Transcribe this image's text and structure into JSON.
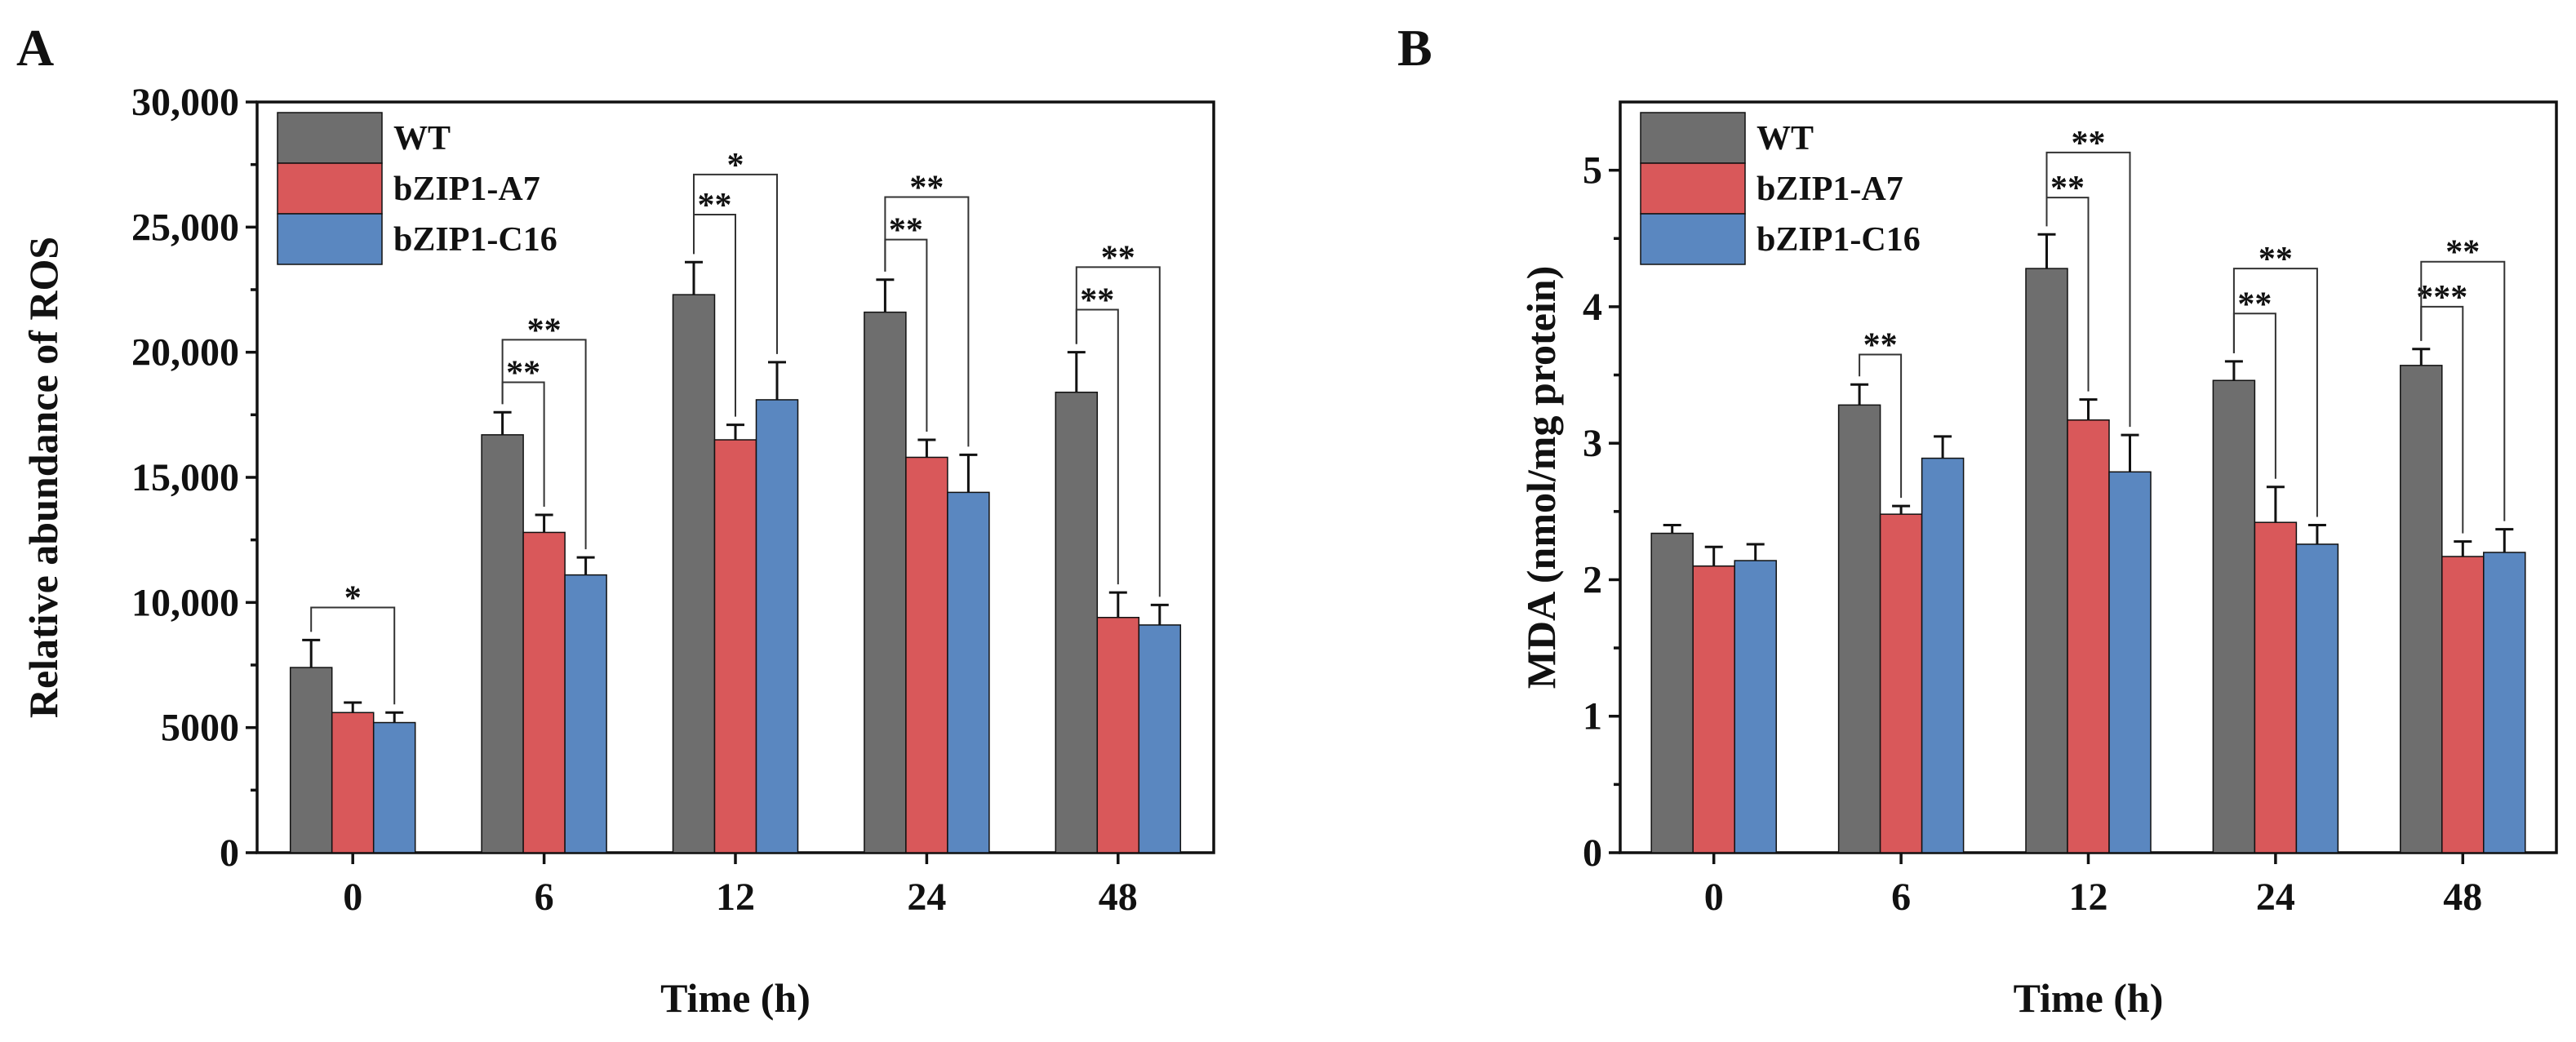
{
  "colors": {
    "WT": "#6e6e6e",
    "bZIP1-A7": "#d9585a",
    "bZIP1-C16": "#5a87c0"
  },
  "chart_data": [
    {
      "panel": "A",
      "type": "bar",
      "title": "",
      "xlabel": "Time (h)",
      "ylabel": "Relative abundance of ROS",
      "categories": [
        "0",
        "6",
        "12",
        "24",
        "48"
      ],
      "ylim": [
        0,
        30000
      ],
      "yticks": [
        0,
        5000,
        10000,
        15000,
        20000,
        25000,
        30000
      ],
      "ytick_labels": [
        "0",
        "5000",
        "10,000",
        "15,000",
        "20,000",
        "25,000",
        "30,000"
      ],
      "legend": {
        "position": "top-left",
        "entries": [
          "WT",
          "bZIP1-A7",
          "bZIP1-C16"
        ]
      },
      "series": [
        {
          "name": "WT",
          "values": [
            7400,
            16700,
            22300,
            21600,
            18400
          ],
          "errors": [
            1100,
            900,
            1300,
            1300,
            1600
          ]
        },
        {
          "name": "bZIP1-A7",
          "values": [
            5600,
            12800,
            16500,
            15800,
            9400
          ],
          "errors": [
            400,
            700,
            600,
            700,
            1000
          ]
        },
        {
          "name": "bZIP1-C16",
          "values": [
            5200,
            11100,
            18100,
            14400,
            9100
          ],
          "errors": [
            400,
            700,
            1500,
            1500,
            800
          ]
        }
      ],
      "significance": [
        {
          "category": 0,
          "from": 0,
          "to": 2,
          "label": "*",
          "y": 9800
        },
        {
          "category": 1,
          "from": 0,
          "to": 1,
          "label": "**",
          "y": 18800
        },
        {
          "category": 1,
          "from": 0,
          "to": 2,
          "label": "**",
          "y": 20500
        },
        {
          "category": 2,
          "from": 0,
          "to": 1,
          "label": "**",
          "y": 25500
        },
        {
          "category": 2,
          "from": 0,
          "to": 2,
          "label": "*",
          "y": 27100
        },
        {
          "category": 3,
          "from": 0,
          "to": 1,
          "label": "**",
          "y": 24500
        },
        {
          "category": 3,
          "from": 0,
          "to": 2,
          "label": "**",
          "y": 26200
        },
        {
          "category": 4,
          "from": 0,
          "to": 1,
          "label": "**",
          "y": 21700
        },
        {
          "category": 4,
          "from": 0,
          "to": 2,
          "label": "**",
          "y": 23400
        }
      ]
    },
    {
      "panel": "B",
      "type": "bar",
      "title": "",
      "xlabel": "Time (h)",
      "ylabel": "MDA (nmol/mg protein)",
      "categories": [
        "0",
        "6",
        "12",
        "24",
        "48"
      ],
      "ylim": [
        0,
        5.5
      ],
      "yticks": [
        0,
        1,
        2,
        3,
        4,
        5
      ],
      "ytick_labels": [
        "0",
        "1",
        "2",
        "3",
        "4",
        "5"
      ],
      "legend": {
        "position": "top-left",
        "entries": [
          "WT",
          "bZIP1-A7",
          "bZIP1-C16"
        ]
      },
      "series": [
        {
          "name": "WT",
          "values": [
            2.34,
            3.28,
            4.28,
            3.46,
            3.57
          ],
          "errors": [
            0.06,
            0.15,
            0.25,
            0.14,
            0.12
          ]
        },
        {
          "name": "bZIP1-A7",
          "values": [
            2.1,
            2.48,
            3.17,
            2.42,
            2.17
          ],
          "errors": [
            0.14,
            0.06,
            0.15,
            0.26,
            0.11
          ]
        },
        {
          "name": "bZIP1-C16",
          "values": [
            2.14,
            2.89,
            2.79,
            2.26,
            2.2
          ],
          "errors": [
            0.12,
            0.16,
            0.27,
            0.14,
            0.17
          ]
        }
      ],
      "significance": [
        {
          "category": 1,
          "from": 0,
          "to": 1,
          "label": "**",
          "y": 3.65
        },
        {
          "category": 2,
          "from": 0,
          "to": 1,
          "label": "**",
          "y": 4.8
        },
        {
          "category": 2,
          "from": 0,
          "to": 2,
          "label": "**",
          "y": 5.13
        },
        {
          "category": 3,
          "from": 0,
          "to": 1,
          "label": "**",
          "y": 3.95
        },
        {
          "category": 3,
          "from": 0,
          "to": 2,
          "label": "**",
          "y": 4.28
        },
        {
          "category": 4,
          "from": 0,
          "to": 1,
          "label": "***",
          "y": 4.0
        },
        {
          "category": 4,
          "from": 0,
          "to": 2,
          "label": "**",
          "y": 4.33
        }
      ]
    }
  ]
}
